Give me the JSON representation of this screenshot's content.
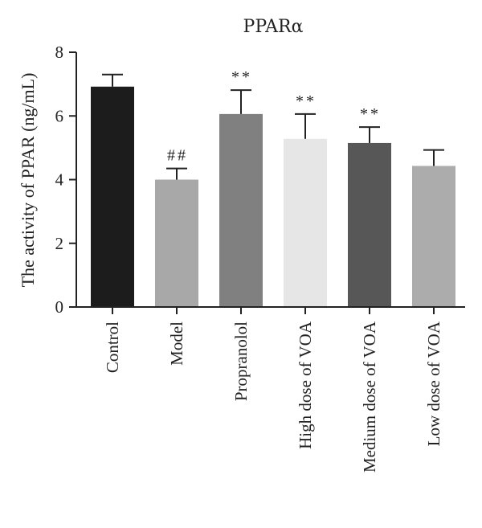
{
  "chart_data": {
    "type": "bar",
    "title": "PPARα",
    "ylabel": "The activity of PPAR (ng/mL)",
    "xlabel": "",
    "ylim": [
      0,
      8
    ],
    "yticks": [
      0,
      2,
      4,
      6,
      8
    ],
    "categories": [
      "Control",
      "Model",
      "Propranolol",
      "High dose of VOA",
      "Medium dose of VOA",
      "Low dose of VOA"
    ],
    "values": [
      6.92,
      4.0,
      6.06,
      5.28,
      5.15,
      4.43
    ],
    "errors": [
      0.38,
      0.35,
      0.75,
      0.78,
      0.5,
      0.5
    ],
    "annotations": [
      "",
      "##",
      "**",
      "**",
      "**",
      ""
    ],
    "colors": [
      "#1c1c1c",
      "#a8a8a8",
      "#808080",
      "#e6e6e6",
      "#575757",
      "#acacac"
    ]
  }
}
